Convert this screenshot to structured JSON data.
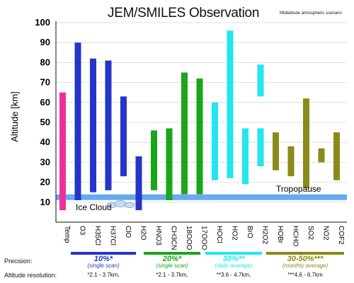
{
  "title": "JEM/SMILES Observation",
  "subtitle": "Midlatitude atmospheric scenario",
  "legend_labels": {
    "precision": "Precision:",
    "altitude_resolution": "Altitude resolution:"
  },
  "groups": [
    {
      "precision": "10%*",
      "note": "(single scan)",
      "resolution": "*2.1 - 3.7km,",
      "color": "#2435c8"
    },
    {
      "precision": "20%*",
      "note": "(single scan)",
      "resolution": "*2.1 - 3.7km,",
      "color": "#1aa51a"
    },
    {
      "precision": "30%**",
      "note": "(daily average)",
      "resolution": "**3.6 - 4.7km,",
      "color": "#22e6f0"
    },
    {
      "precision": "30-50%***",
      "note": "(monthly average)",
      "resolution": "***4.6 - 6.7km",
      "color": "#8a8a1a"
    }
  ],
  "chart_data": {
    "type": "bar",
    "title": "JEM/SMILES Observation",
    "ylabel": "Altitude [km]",
    "ylim": [
      0,
      100
    ],
    "yticks": [
      10,
      20,
      30,
      40,
      50,
      60,
      70,
      80,
      90,
      100
    ],
    "categories": [
      "Temp",
      "O3",
      "H35Cl",
      "H37Cl",
      "ClO",
      "H2O",
      "HNO3",
      "CH3CN",
      "18OOO",
      "17OOO",
      "HOCl",
      "HO2",
      "BrO",
      "H2O2",
      "HOBr",
      "HCHO",
      "SO2",
      "NO2",
      "COF2"
    ],
    "ranges": [
      [
        6,
        65
      ],
      [
        11,
        90
      ],
      [
        15,
        82
      ],
      [
        16,
        81
      ],
      [
        23,
        63
      ],
      [
        6,
        33
      ],
      [
        16,
        46
      ],
      [
        11,
        47
      ],
      [
        14,
        75
      ],
      [
        14,
        72
      ],
      [
        21,
        60
      ],
      [
        22,
        96
      ],
      [
        19,
        47
      ],
      [
        28,
        47,
        63,
        79
      ],
      [
        26,
        45
      ],
      [
        23,
        38
      ],
      [
        17,
        62
      ],
      [
        30,
        37
      ],
      [
        21,
        45
      ]
    ],
    "colors": [
      "#f0309a",
      "#2435c8",
      "#2435c8",
      "#2435c8",
      "#2435c8",
      "#2435c8",
      "#1aa51a",
      "#1aa51a",
      "#1aa51a",
      "#1aa51a",
      "#22e6f0",
      "#22e6f0",
      "#22e6f0",
      "#22e6f0",
      "#8a8a1a",
      "#8a8a1a",
      "#8a8a1a",
      "#8a8a1a",
      "#8a8a1a"
    ],
    "tropopause": {
      "label": "Tropopause",
      "altitude": 12.5,
      "color": "#66aaf0"
    },
    "ice_cloud": {
      "label": "Ice Cloud"
    }
  }
}
